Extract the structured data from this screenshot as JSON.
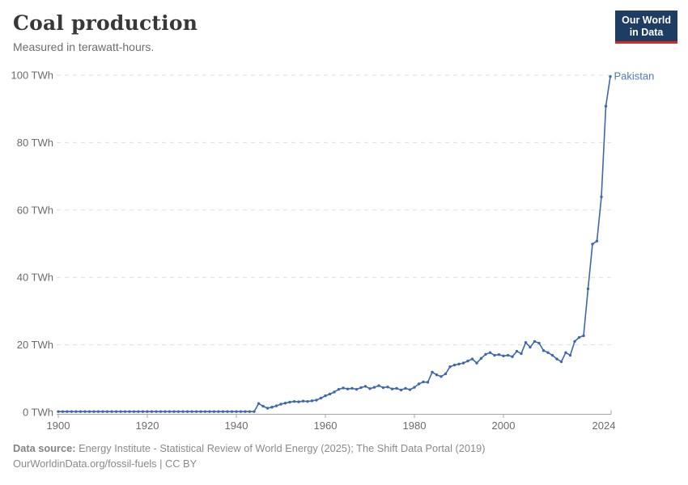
{
  "header": {
    "title": "Coal production",
    "subtitle": "Measured in terawatt-hours.",
    "logo": {
      "line1": "Our World",
      "line2": "in Data"
    }
  },
  "chart_data": {
    "type": "line",
    "title": "Coal production",
    "subtitle": "Measured in terawatt-hours.",
    "unit": "TWh",
    "xlabel": "",
    "ylabel": "",
    "xlim": [
      1900,
      2024
    ],
    "ylim": [
      0,
      100
    ],
    "grid": "horizontal-dashed",
    "legend_position": "end-of-line-label",
    "x_ticks": [
      1900,
      1920,
      1940,
      1960,
      1980,
      2000,
      2024
    ],
    "x_tick_labels": [
      "1900",
      "1920",
      "1940",
      "1960",
      "1980",
      "2000",
      "2024"
    ],
    "y_ticks": [
      0,
      20,
      40,
      60,
      80,
      100
    ],
    "y_tick_labels": [
      "0 TWh",
      "20 TWh",
      "40 TWh",
      "60 TWh",
      "80 TWh",
      "100 TWh"
    ],
    "series": [
      {
        "name": "Pakistan",
        "color": "#3d68ad",
        "label_color": "#4d77c0",
        "x_start": 1900,
        "x_step": 1,
        "values": [
          0.2,
          0.2,
          0.2,
          0.2,
          0.2,
          0.2,
          0.2,
          0.2,
          0.2,
          0.2,
          0.2,
          0.2,
          0.2,
          0.2,
          0.2,
          0.2,
          0.2,
          0.2,
          0.2,
          0.2,
          0.2,
          0.2,
          0.2,
          0.2,
          0.2,
          0.2,
          0.2,
          0.2,
          0.2,
          0.2,
          0.2,
          0.2,
          0.2,
          0.2,
          0.2,
          0.2,
          0.2,
          0.2,
          0.2,
          0.2,
          0.2,
          0.2,
          0.2,
          0.2,
          0.2,
          2.6,
          1.8,
          1.2,
          1.5,
          1.9,
          2.4,
          2.7,
          3.0,
          3.2,
          3.1,
          3.3,
          3.2,
          3.4,
          3.6,
          4.2,
          4.9,
          5.4,
          6.0,
          6.8,
          7.2,
          6.9,
          7.1,
          6.8,
          7.3,
          7.7,
          7.0,
          7.4,
          7.9,
          7.3,
          7.5,
          6.9,
          7.1,
          6.6,
          7.1,
          6.7,
          7.4,
          8.4,
          9.0,
          8.9,
          11.9,
          11.1,
          10.6,
          11.4,
          13.5,
          14.0,
          14.3,
          14.6,
          15.2,
          15.8,
          14.6,
          16.0,
          17.2,
          17.7,
          16.9,
          17.1,
          16.7,
          16.9,
          16.5,
          18.1,
          17.4,
          20.7,
          19.3,
          21.0,
          20.5,
          18.3,
          17.7,
          16.9,
          15.8,
          15.0,
          17.7,
          16.9,
          21.0,
          22.2,
          22.7,
          36.6,
          49.9,
          50.8,
          63.9,
          90.8,
          99.6
        ]
      }
    ]
  },
  "footer": {
    "source_label": "Data source:",
    "source_text": " Energy Institute - Statistical Review of World Energy (2025); The Shift Data Portal (2019)",
    "license_line": "OurWorldinData.org/fossil-fuels | CC BY"
  },
  "colors": {
    "line": "#3d68ad",
    "series_label": "#4d77c0",
    "gridline": "#dedede",
    "axis": "#a6a6a6",
    "tick_text": "#6b6b6b",
    "title_text": "#383838",
    "subtitle_text": "#6d6d6d",
    "footer_text": "#8a8a8a",
    "logo_bg": "#1d3d63",
    "logo_accent": "#d42b20"
  }
}
